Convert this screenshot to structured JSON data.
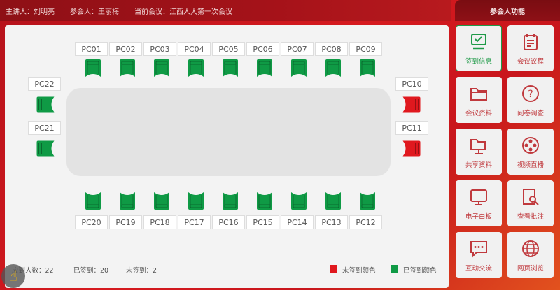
{
  "header": {
    "speaker": "主讲人：刘明亮",
    "attendee": "参会人：王丽梅",
    "meeting": "当前会议：江西人大第一次会议"
  },
  "seats": {
    "top": [
      {
        "id": "PC01",
        "status": "signed"
      },
      {
        "id": "PC02",
        "status": "signed"
      },
      {
        "id": "PC03",
        "status": "signed"
      },
      {
        "id": "PC04",
        "status": "signed"
      },
      {
        "id": "PC05",
        "status": "signed"
      },
      {
        "id": "PC06",
        "status": "signed"
      },
      {
        "id": "PC07",
        "status": "signed"
      },
      {
        "id": "PC08",
        "status": "signed"
      },
      {
        "id": "PC09",
        "status": "signed"
      }
    ],
    "bottom": [
      {
        "id": "PC20",
        "status": "signed"
      },
      {
        "id": "PC19",
        "status": "signed"
      },
      {
        "id": "PC18",
        "status": "signed"
      },
      {
        "id": "PC17",
        "status": "signed"
      },
      {
        "id": "PC16",
        "status": "signed"
      },
      {
        "id": "PC15",
        "status": "signed"
      },
      {
        "id": "PC14",
        "status": "signed"
      },
      {
        "id": "PC13",
        "status": "signed"
      },
      {
        "id": "PC12",
        "status": "signed"
      }
    ],
    "left": [
      {
        "id": "PC22",
        "status": "signed"
      },
      {
        "id": "PC21",
        "status": "signed"
      }
    ],
    "right": [
      {
        "id": "PC10",
        "status": "unsigned"
      },
      {
        "id": "PC11",
        "status": "unsigned"
      }
    ]
  },
  "footer": {
    "expected": "应到人数：22",
    "signed": "已签到：20",
    "unsigned": "未签到：2",
    "legend_unsigned": "未签到颜色",
    "legend_signed": "已签到颜色"
  },
  "colors": {
    "signed": "#0f9a45",
    "unsigned": "#e0181e"
  },
  "panel": {
    "title": "参会人功能",
    "items": [
      {
        "label": "签到信息",
        "icon": "monitor-check-icon",
        "active": true
      },
      {
        "label": "会议议程",
        "icon": "calendar-icon"
      },
      {
        "label": "会议资料",
        "icon": "folder-icon"
      },
      {
        "label": "问卷调查",
        "icon": "question-icon"
      },
      {
        "label": "共享资料",
        "icon": "shared-folder-icon"
      },
      {
        "label": "视频直播",
        "icon": "film-reel-icon"
      },
      {
        "label": "电子白板",
        "icon": "whiteboard-icon"
      },
      {
        "label": "查看批注",
        "icon": "search-document-icon"
      },
      {
        "label": "互动交流",
        "icon": "chat-icon"
      },
      {
        "label": "网页浏览",
        "icon": "globe-icon"
      }
    ]
  }
}
